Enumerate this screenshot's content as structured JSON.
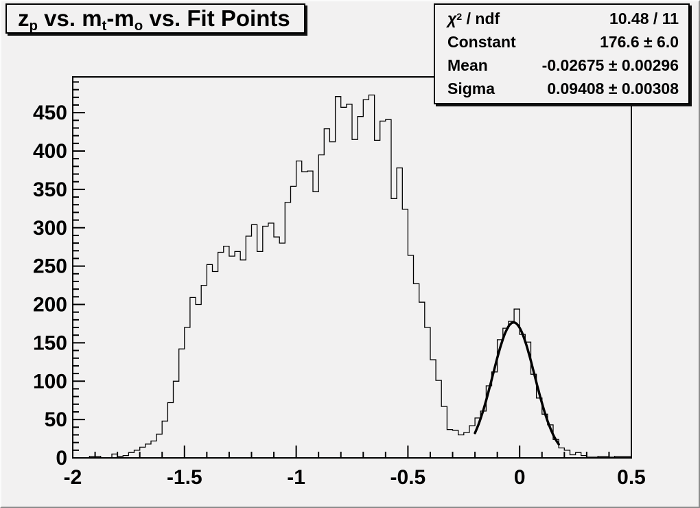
{
  "window": {
    "background": "#f2f1f1",
    "bevel_light": "#fbfbfb",
    "bevel_dark": "#8c8c8c",
    "line_color": "#000000"
  },
  "title": {
    "full_text": "z_p vs. m_t-m_o vs. Fit Points",
    "parts": {
      "p1": "z",
      "s1": "p",
      "p2": " vs. m",
      "s2": "t",
      "p3": "-m",
      "s3": "o",
      "p4": " vs. Fit Points"
    }
  },
  "stats": {
    "chi": {
      "base": "χ",
      "sup": "2",
      "rest": " / ndf"
    },
    "rows": [
      {
        "label": "χ² / ndf",
        "value": "10.48 / 11"
      },
      {
        "label": "Constant",
        "value": "176.6 ± 6.0"
      },
      {
        "label": "Mean",
        "value": "-0.02675 ± 0.00296"
      },
      {
        "label": "Sigma",
        "value": "0.09408 ± 0.00308"
      }
    ]
  },
  "chart_data": {
    "type": "bar",
    "subtype": "step-histogram",
    "title": "z_p vs. m_t-m_o vs. Fit Points",
    "xlabel": "",
    "ylabel": "",
    "xlim": [
      -2.0,
      0.5
    ],
    "ylim": [
      0,
      496.65
    ],
    "bin_width": 0.025,
    "bin_start": -2.0,
    "bins": [
      0,
      0,
      0,
      2,
      2,
      0,
      0,
      5,
      2,
      3,
      7,
      10,
      14,
      18,
      22,
      31,
      48,
      72,
      100,
      142,
      170,
      209,
      200,
      225,
      252,
      243,
      268,
      276,
      263,
      269,
      258,
      289,
      304,
      269,
      302,
      306,
      288,
      280,
      333,
      354,
      387,
      373,
      374,
      347,
      395,
      429,
      412,
      471,
      457,
      461,
      415,
      445,
      467,
      473,
      414,
      439,
      441,
      338,
      378,
      324,
      264,
      227,
      203,
      170,
      128,
      101,
      67,
      37,
      36,
      30,
      33,
      42,
      52,
      61,
      94,
      112,
      154,
      169,
      178,
      194,
      161,
      151,
      109,
      78,
      57,
      43,
      24,
      13,
      10,
      4,
      7,
      3,
      1,
      1,
      2,
      2,
      1,
      2,
      2,
      2
    ],
    "x_ticks": {
      "values": [
        -2,
        -1.5,
        -1,
        -0.5,
        0,
        0.5
      ],
      "labels": [
        "-2",
        "-1.5",
        "-1",
        "-0.5",
        "0",
        "0.5"
      ],
      "minor_step": 0.1
    },
    "y_ticks": {
      "values": [
        0,
        50,
        100,
        150,
        200,
        250,
        300,
        350,
        400,
        450
      ],
      "labels": [
        "0",
        "50",
        "100",
        "150",
        "200",
        "250",
        "300",
        "350",
        "400",
        "450"
      ],
      "minor_step": 10
    },
    "grid": false,
    "legend": "none",
    "fit": {
      "type": "gaussian",
      "constant": 176.6,
      "mean": -0.02675,
      "sigma": 0.09408,
      "chi2": 10.48,
      "ndf": 11,
      "draw_range": [
        -0.2,
        0.175
      ]
    }
  }
}
